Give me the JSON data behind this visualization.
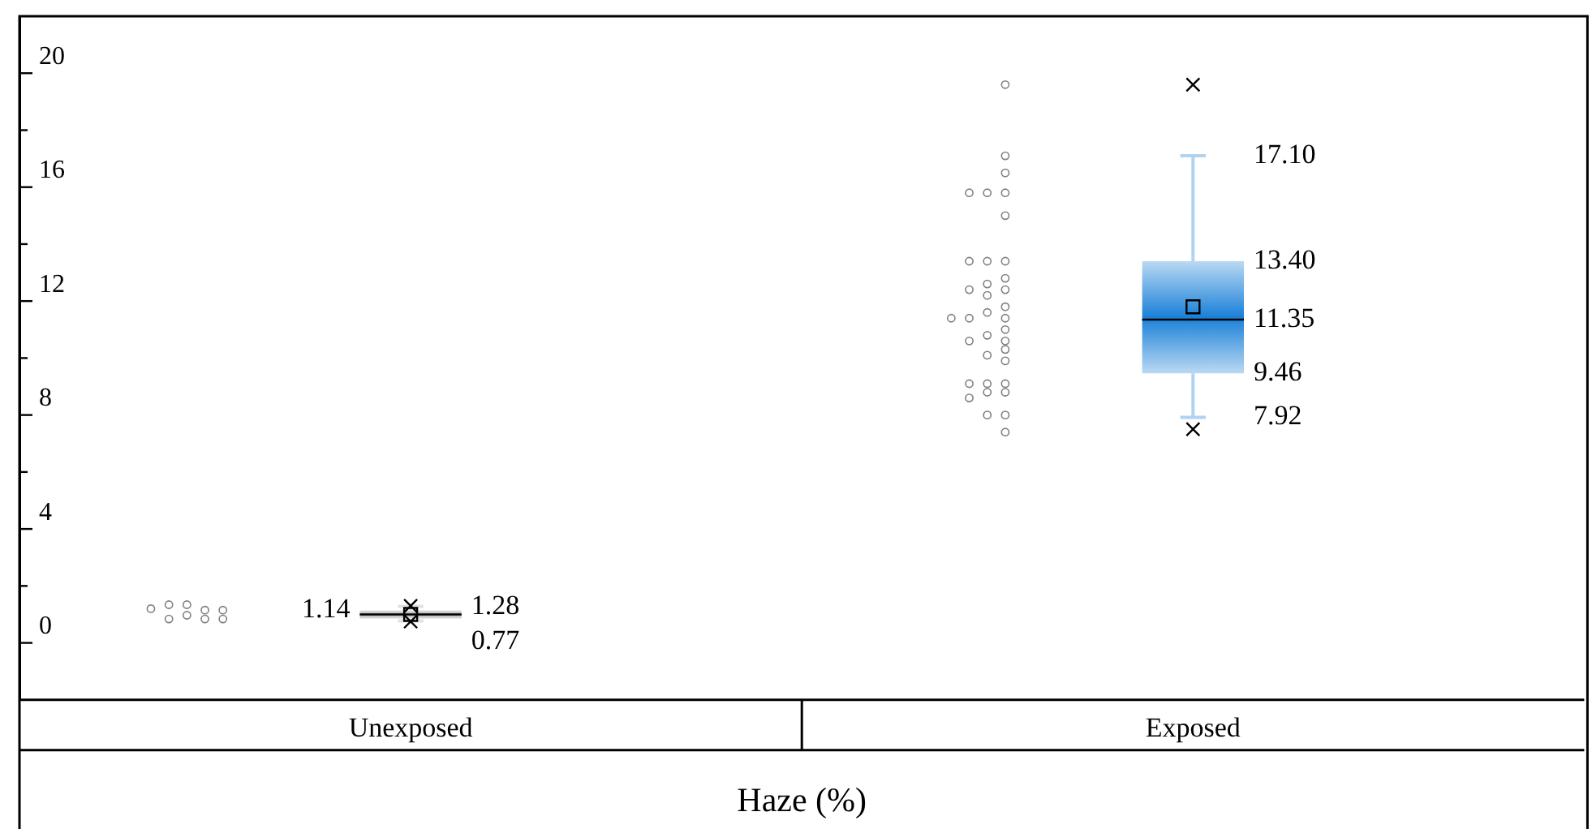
{
  "chart_data": {
    "type": "box",
    "xlabel": "Haze (%)",
    "categories": [
      "Unexposed",
      "Exposed"
    ],
    "colors": [
      "#a8a8a8",
      "#1a80d8"
    ],
    "boxes": [
      {
        "low": 0.77,
        "q1": 0.85,
        "median": 1.0,
        "q3": 1.14,
        "high": 1.28,
        "mean": 1.0,
        "outliers": [
          1.3,
          0.75
        ]
      },
      {
        "low": 7.92,
        "q1": 9.46,
        "median": 11.35,
        "q3": 13.4,
        "high": 17.1,
        "mean": 11.8,
        "outliers": [
          19.6,
          7.5
        ]
      }
    ],
    "series": [
      {
        "type": "scatter",
        "color": "#808080",
        "x": [
          "Unexposed",
          "Unexposed",
          "Unexposed",
          "Unexposed",
          "Unexposed",
          "Unexposed",
          "Unexposed",
          "Unexposed",
          "Unexposed",
          "Exposed",
          "Exposed",
          "Exposed",
          "Exposed",
          "Exposed",
          "Exposed",
          "Exposed",
          "Exposed",
          "Exposed",
          "Exposed",
          "Exposed",
          "Exposed",
          "Exposed",
          "Exposed",
          "Exposed",
          "Exposed",
          "Exposed",
          "Exposed",
          "Exposed",
          "Exposed",
          "Exposed",
          "Exposed",
          "Exposed",
          "Exposed",
          "Exposed",
          "Exposed",
          "Exposed",
          "Exposed",
          "Exposed",
          "Exposed",
          "Exposed",
          "Exposed",
          "Exposed",
          "Exposed",
          "Exposed",
          "Exposed"
        ],
        "values": [
          1.15,
          1.15,
          1.34,
          1.34,
          0.84,
          0.84,
          1.2,
          0.97,
          0.84,
          19.6,
          17.1,
          16.5,
          15.8,
          15.8,
          15.8,
          15.0,
          13.4,
          13.4,
          13.4,
          12.8,
          12.6,
          12.4,
          12.4,
          12.2,
          11.8,
          11.6,
          11.4,
          11.4,
          11.4,
          11.0,
          10.8,
          10.6,
          10.6,
          10.3,
          10.1,
          9.9,
          9.1,
          9.1,
          9.1,
          8.8,
          8.8,
          8.6,
          8.0,
          8.0,
          7.4
        ]
      }
    ],
    "annotations": [
      {
        "text": "1.28",
        "x": "Unexposed",
        "y": 1.28
      },
      {
        "text": "1.14",
        "x": "Unexposed",
        "y": 1.14
      },
      {
        "text": "0.77",
        "x": "Unexposed",
        "y": 0.77
      },
      {
        "text": "17.10",
        "x": "Exposed",
        "y": 17.1
      },
      {
        "text": "13.40",
        "x": "Exposed",
        "y": 13.4
      },
      {
        "text": "11.35",
        "x": "Exposed",
        "y": 11.35
      },
      {
        "text": "9.46",
        "x": "Exposed",
        "y": 9.46
      },
      {
        "text": "7.92",
        "x": "Exposed",
        "y": 7.92
      }
    ],
    "ylim": [
      -2,
      22
    ],
    "yticks": [
      0,
      {
        "value": 2,
        "label": null
      },
      4,
      {
        "value": 6,
        "label": null
      },
      8,
      {
        "value": 10,
        "label": null
      },
      12,
      {
        "value": 14,
        "label": null
      },
      16,
      {
        "value": 18,
        "label": null
      },
      20
    ],
    "grid": false,
    "legend": false,
    "marker": "circle"
  }
}
